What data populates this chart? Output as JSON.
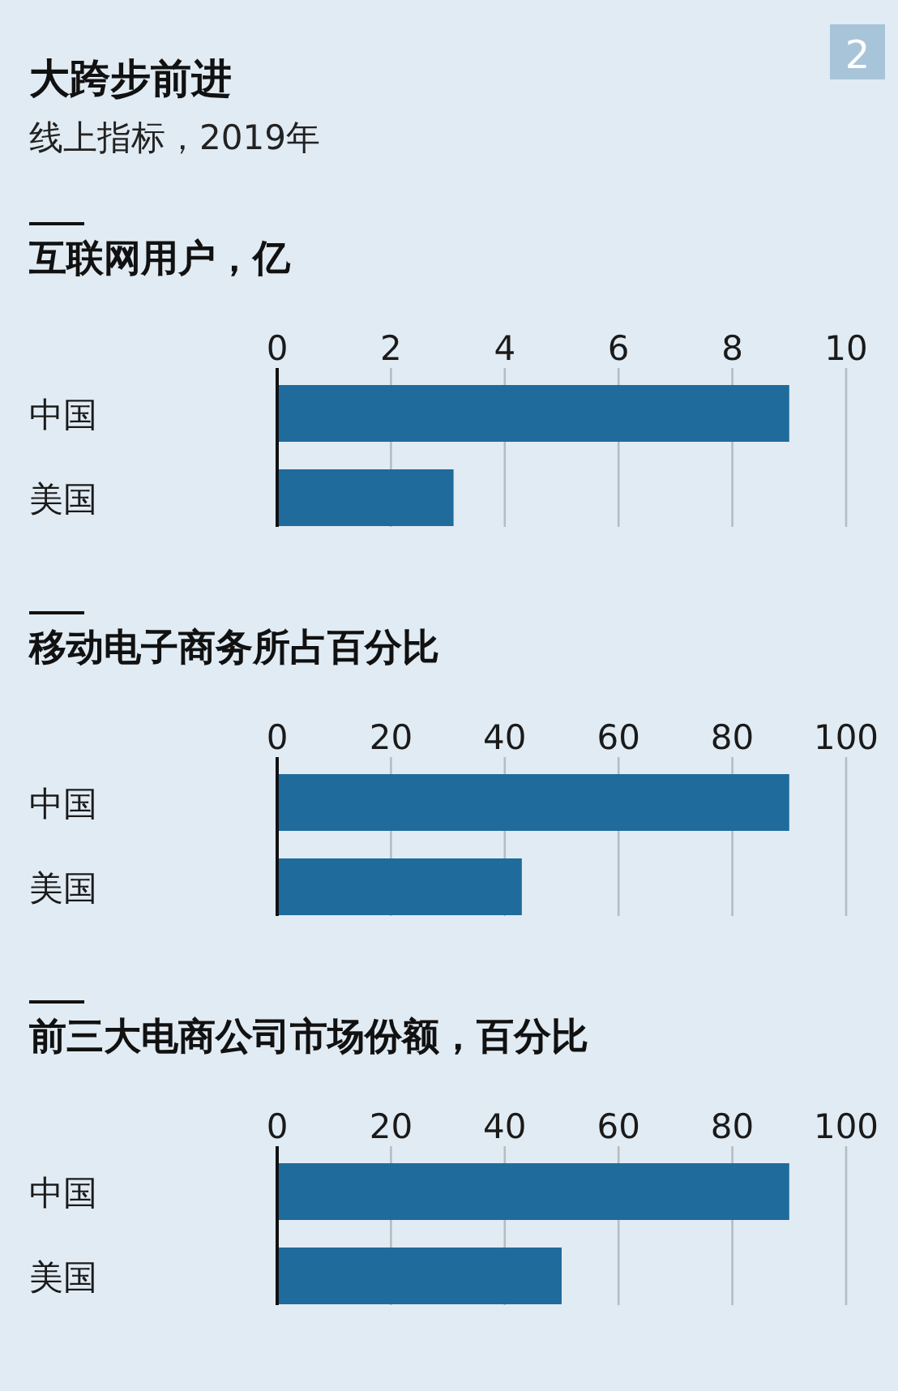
{
  "chart_data": [
    {
      "type": "bar",
      "orientation": "horizontal",
      "title": "互联网用户，亿",
      "annotations": [
        "大跨步前进",
        "线上指标，2019年",
        "2"
      ],
      "categories": [
        "中国",
        "美国"
      ],
      "values": [
        9.0,
        3.1
      ],
      "color": "#1f6b9c",
      "xlim": [
        0,
        10
      ],
      "xticks": [
        0,
        2,
        4,
        6,
        8,
        10
      ],
      "grid": "x"
    },
    {
      "type": "bar",
      "orientation": "horizontal",
      "title": "移动电子商务所占百分比",
      "categories": [
        "中国",
        "美国"
      ],
      "values": [
        90,
        43
      ],
      "color": "#1f6b9c",
      "xlim": [
        0,
        100
      ],
      "xticks": [
        0,
        20,
        40,
        60,
        80,
        100
      ],
      "grid": "x"
    },
    {
      "type": "bar",
      "orientation": "horizontal",
      "title": "前三大电商公司市场份额，百分比",
      "categories": [
        "中国",
        "美国"
      ],
      "values": [
        90,
        50
      ],
      "color": "#1f6b9c",
      "xlim": [
        0,
        100
      ],
      "xticks": [
        0,
        20,
        40,
        60,
        80,
        100
      ],
      "grid": "x"
    }
  ]
}
